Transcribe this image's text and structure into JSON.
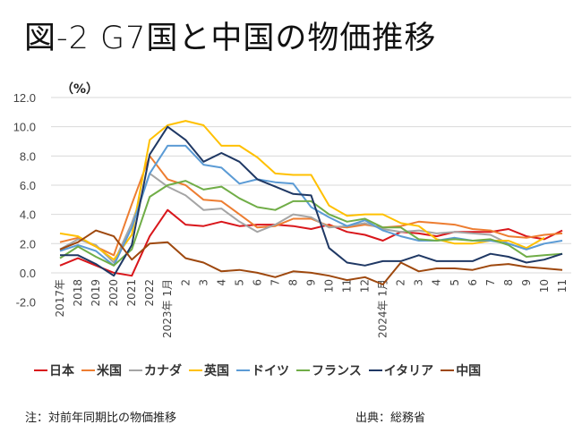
{
  "title": "図-2 G7国と中国の物価推移",
  "footer": {
    "note": "注：対前年同期比の物価推移",
    "source": "出典：総務省"
  },
  "chart_data": {
    "type": "line",
    "title": "図-2 G7国と中国の物価推移",
    "ylabel": "（%）",
    "xlabel": "",
    "ylim": [
      -2,
      12
    ],
    "yticks": [
      -2,
      0,
      2,
      4,
      6,
      8,
      10,
      12
    ],
    "ytick_labels": [
      "-2.0",
      "0.0",
      "2.0",
      "4.0",
      "6.0",
      "8.0",
      "10.0",
      "12.0"
    ],
    "grid": true,
    "legend_position": "bottom",
    "categories": [
      "2017年",
      "2018",
      "2019",
      "2020",
      "2021",
      "2022",
      "2023年 1月",
      "2",
      "3",
      "4",
      "5",
      "6",
      "7",
      "8",
      "9",
      "10",
      "11",
      "12",
      "2024年 1月",
      "2",
      "3",
      "4",
      "5",
      "6",
      "7",
      "8",
      "9",
      "10",
      "11"
    ],
    "series": [
      {
        "name": "日本",
        "color": "#D9161B",
        "values": [
          0.5,
          1.0,
          0.5,
          0.0,
          -0.2,
          2.5,
          4.3,
          3.3,
          3.2,
          3.5,
          3.2,
          3.3,
          3.3,
          3.2,
          3.0,
          3.3,
          2.8,
          2.6,
          2.2,
          2.8,
          2.7,
          2.5,
          2.8,
          2.8,
          2.8,
          3.0,
          2.5,
          2.3,
          2.9
        ]
      },
      {
        "name": "米国",
        "color": "#ED7D31",
        "values": [
          2.1,
          2.4,
          1.8,
          1.2,
          4.7,
          8.0,
          6.4,
          6.0,
          5.0,
          4.9,
          4.0,
          3.1,
          3.2,
          3.7,
          3.7,
          3.2,
          3.1,
          3.3,
          3.1,
          3.2,
          3.5,
          3.4,
          3.3,
          3.0,
          2.9,
          2.5,
          2.4,
          2.6,
          2.7
        ]
      },
      {
        "name": "カナダ",
        "color": "#A5A5A5",
        "values": [
          1.6,
          2.3,
          1.9,
          0.7,
          3.4,
          6.8,
          5.9,
          5.3,
          4.3,
          4.4,
          3.5,
          2.8,
          3.3,
          4.0,
          3.8,
          3.1,
          3.2,
          3.4,
          3.0,
          2.8,
          2.9,
          2.7,
          2.8,
          2.7,
          2.6,
          2.0,
          1.6,
          2.0,
          null
        ]
      },
      {
        "name": "英国",
        "color": "#FFC000",
        "values": [
          2.7,
          2.5,
          1.8,
          0.9,
          2.6,
          9.1,
          10.1,
          10.4,
          10.1,
          8.7,
          8.7,
          7.9,
          6.8,
          6.7,
          6.7,
          4.6,
          3.9,
          4.0,
          4.0,
          3.4,
          3.2,
          2.3,
          2.0,
          2.0,
          2.2,
          2.2,
          1.7,
          2.4,
          null
        ]
      },
      {
        "name": "ドイツ",
        "color": "#5B9BD5",
        "values": [
          1.5,
          1.9,
          1.5,
          0.5,
          3.1,
          6.8,
          8.7,
          8.7,
          7.4,
          7.2,
          6.1,
          6.4,
          6.2,
          6.1,
          4.5,
          3.8,
          3.2,
          3.6,
          2.9,
          2.5,
          2.2,
          2.2,
          2.4,
          2.2,
          2.2,
          2.0,
          1.6,
          2.0,
          2.2
        ]
      },
      {
        "name": "フランス",
        "color": "#70AD47",
        "values": [
          1.0,
          1.8,
          1.1,
          0.5,
          1.6,
          5.2,
          6.0,
          6.3,
          5.7,
          5.9,
          5.1,
          4.5,
          4.3,
          4.9,
          4.9,
          4.0,
          3.5,
          3.7,
          3.1,
          3.1,
          2.3,
          2.2,
          2.3,
          2.2,
          2.3,
          1.9,
          1.1,
          1.2,
          1.3
        ]
      },
      {
        "name": "イタリア",
        "color": "#1F3864",
        "values": [
          1.2,
          1.2,
          0.6,
          -0.2,
          1.9,
          8.1,
          10.0,
          9.1,
          7.6,
          8.2,
          7.6,
          6.4,
          5.9,
          5.4,
          5.3,
          1.7,
          0.7,
          0.5,
          0.8,
          0.8,
          1.2,
          0.8,
          0.8,
          0.8,
          1.3,
          1.1,
          0.7,
          0.9,
          1.3
        ]
      },
      {
        "name": "中国",
        "color": "#9E480E",
        "values": [
          1.6,
          2.1,
          2.9,
          2.5,
          0.9,
          2.0,
          2.1,
          1.0,
          0.7,
          0.1,
          0.2,
          0.0,
          -0.3,
          0.1,
          0.0,
          -0.2,
          -0.5,
          -0.3,
          -0.8,
          0.7,
          0.1,
          0.3,
          0.3,
          0.2,
          0.5,
          0.6,
          0.4,
          0.3,
          0.2
        ]
      }
    ]
  }
}
